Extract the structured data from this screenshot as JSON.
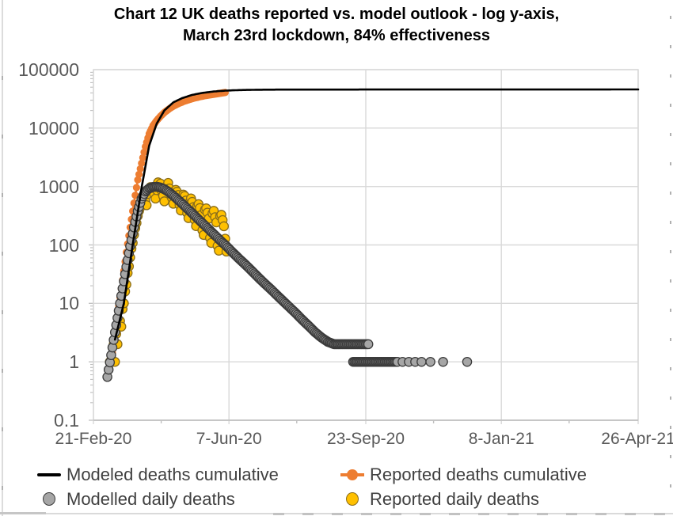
{
  "title": {
    "line1": "Chart 12 UK deaths reported vs. model outlook - log y-axis,",
    "line2": "March 23rd lockdown, 84% effectiveness"
  },
  "legend": {
    "items": [
      {
        "id": "modeled-cumulative",
        "label": "Modeled deaths cumulative",
        "swatch": "line",
        "color": "#000000"
      },
      {
        "id": "reported-cumulative",
        "label": "Reported deaths cumulative",
        "swatch": "line-marker",
        "color": "#ED7D31"
      },
      {
        "id": "modelled-daily",
        "label": "Modelled daily deaths",
        "swatch": "circle",
        "fill": "#A6A6A6",
        "stroke": "#3B3B3B"
      },
      {
        "id": "reported-daily",
        "label": "Reported daily deaths",
        "swatch": "circle",
        "fill": "#FFC000",
        "stroke": "#8A6D1B"
      }
    ]
  },
  "chart_data": {
    "type": "line+scatter",
    "title": "Chart 12 UK deaths reported vs. model outlook - log y-axis, March 23rd lockdown, 84% effectiveness",
    "x_axis": {
      "unit": "days since 21-Feb-20",
      "range_days": [
        0,
        430
      ],
      "tick_days": [
        0,
        107,
        215,
        322,
        430
      ],
      "tick_labels": [
        "21-Feb-20",
        "7-Jun-20",
        "23-Sep-20",
        "8-Jan-21",
        "26-Apr-21"
      ],
      "minor_tick_days": [
        53.5,
        160.5,
        268.5,
        375.5
      ]
    },
    "y_axis": {
      "scale": "log",
      "range": [
        0.1,
        100000
      ],
      "tick_values": [
        100000,
        10000,
        1000,
        100,
        10,
        1,
        0.1
      ],
      "tick_labels": [
        "100000",
        "10000",
        "1000",
        "100",
        "10",
        "1",
        "0.1"
      ],
      "grid": true,
      "gridline_color": "#D9D9D9"
    },
    "series": [
      {
        "name": "Reported deaths cumulative",
        "style": "line+marker",
        "color": "#ED7D31",
        "marker_radius": 4.6,
        "sampling": "daily-log-interpolated",
        "anchors": [
          [
            14,
            1
          ],
          [
            16,
            2
          ],
          [
            18,
            4
          ],
          [
            20,
            9
          ],
          [
            23,
            25
          ],
          [
            26,
            75
          ],
          [
            29,
            200
          ],
          [
            32,
            520
          ],
          [
            35,
            1300
          ],
          [
            38,
            2500
          ],
          [
            41,
            4800
          ],
          [
            44,
            8000
          ],
          [
            47,
            11000
          ],
          [
            50,
            13500
          ],
          [
            53,
            16000
          ],
          [
            56,
            18500
          ],
          [
            60,
            21500
          ],
          [
            64,
            24300
          ],
          [
            68,
            26800
          ],
          [
            72,
            29000
          ],
          [
            76,
            31000
          ],
          [
            80,
            32800
          ],
          [
            84,
            34400
          ],
          [
            88,
            35800
          ],
          [
            92,
            37000
          ],
          [
            96,
            38100
          ],
          [
            100,
            39400
          ],
          [
            104,
            40600
          ]
        ]
      },
      {
        "name": "Reported daily deaths",
        "style": "marker",
        "fill": "#FFC000",
        "stroke": "#8A6D1B",
        "marker_radius": 5.6,
        "points": [
          [
            13,
            1
          ],
          [
            15,
            1
          ],
          [
            16,
            2
          ],
          [
            17,
            1
          ],
          [
            18,
            3
          ],
          [
            19,
            2
          ],
          [
            20,
            4
          ],
          [
            21,
            5
          ],
          [
            22,
            4
          ],
          [
            23,
            8
          ],
          [
            24,
            10
          ],
          [
            25,
            16
          ],
          [
            26,
            21
          ],
          [
            27,
            33
          ],
          [
            28,
            43
          ],
          [
            29,
            61
          ],
          [
            30,
            87
          ],
          [
            31,
            108
          ],
          [
            32,
            149
          ],
          [
            33,
            194
          ],
          [
            34,
            237
          ],
          [
            35,
            313
          ],
          [
            36,
            381
          ],
          [
            37,
            438
          ],
          [
            38,
            557
          ],
          [
            39,
            621
          ],
          [
            40,
            704
          ],
          [
            41,
            563
          ],
          [
            42,
            479
          ],
          [
            43,
            744
          ],
          [
            44,
            861
          ],
          [
            45,
            978
          ],
          [
            46,
            941
          ],
          [
            47,
            893
          ],
          [
            48,
            737
          ],
          [
            49,
            621
          ],
          [
            50,
            869
          ],
          [
            51,
            1180
          ],
          [
            52,
            954
          ],
          [
            53,
            1120
          ],
          [
            54,
            843
          ],
          [
            55,
            693
          ],
          [
            56,
            558
          ],
          [
            57,
            904
          ],
          [
            58,
            946
          ],
          [
            59,
            1152
          ],
          [
            60,
            926
          ],
          [
            61,
            786
          ],
          [
            62,
            638
          ],
          [
            63,
            508
          ],
          [
            64,
            826
          ],
          [
            65,
            877
          ],
          [
            66,
            812
          ],
          [
            67,
            715
          ],
          [
            68,
            482
          ],
          [
            69,
            388
          ],
          [
            70,
            653
          ],
          [
            71,
            726
          ],
          [
            72,
            688
          ],
          [
            73,
            575
          ],
          [
            74,
            351
          ],
          [
            75,
            288
          ],
          [
            76,
            538
          ],
          [
            77,
            626
          ],
          [
            78,
            545
          ],
          [
            79,
            446
          ],
          [
            80,
            268
          ],
          [
            81,
            210
          ],
          [
            82,
            468
          ],
          [
            83,
            498
          ],
          [
            84,
            428
          ],
          [
            85,
            324
          ],
          [
            86,
            178
          ],
          [
            87,
            148
          ],
          [
            88,
            401
          ],
          [
            89,
            422
          ],
          [
            90,
            357
          ],
          [
            91,
            282
          ],
          [
            92,
            131
          ],
          [
            93,
            108
          ],
          [
            94,
            346
          ],
          [
            95,
            383
          ],
          [
            96,
            298
          ],
          [
            97,
            243
          ],
          [
            98,
            96
          ],
          [
            99,
            80
          ],
          [
            100,
            312
          ],
          [
            101,
            328
          ],
          [
            102,
            266
          ],
          [
            103,
            209
          ],
          [
            104,
            128
          ],
          [
            105,
            77
          ]
        ]
      },
      {
        "name": "Modelled daily deaths",
        "style": "marker",
        "fill": "#A6A6A6",
        "stroke": "#3B3B3B",
        "marker_radius": 5.6,
        "sampling": "daily-log-interpolated",
        "anchors": [
          [
            11,
            0.55
          ],
          [
            14,
            1.3
          ],
          [
            17,
            3.2
          ],
          [
            20,
            7.5
          ],
          [
            23,
            18
          ],
          [
            26,
            42
          ],
          [
            29,
            95
          ],
          [
            32,
            200
          ],
          [
            35,
            380
          ],
          [
            38,
            620
          ],
          [
            41,
            820
          ],
          [
            44,
            930
          ],
          [
            47,
            980
          ],
          [
            50,
            990
          ],
          [
            53,
            960
          ],
          [
            56,
            900
          ],
          [
            60,
            790
          ],
          [
            65,
            640
          ],
          [
            70,
            510
          ],
          [
            75,
            400
          ],
          [
            80,
            315
          ],
          [
            85,
            248
          ],
          [
            90,
            195
          ],
          [
            95,
            153
          ],
          [
            100,
            120
          ],
          [
            105,
            95
          ],
          [
            110,
            74
          ],
          [
            115,
            58
          ],
          [
            120,
            46
          ],
          [
            125,
            36
          ],
          [
            130,
            28
          ],
          [
            135,
            22
          ],
          [
            140,
            17.5
          ],
          [
            145,
            13.7
          ],
          [
            150,
            10.8
          ],
          [
            155,
            8.5
          ],
          [
            160,
            6.7
          ],
          [
            165,
            5.2
          ],
          [
            170,
            4.1
          ],
          [
            175,
            3.2
          ],
          [
            180,
            2.6
          ],
          [
            185,
            2.2
          ],
          [
            190,
            2
          ]
        ],
        "tail_runs": [
          {
            "from": 191,
            "to": 217,
            "value": 2
          },
          {
            "from": 205,
            "to": 240,
            "value": 1
          }
        ],
        "tail_sparse": [
          [
            244,
            1
          ],
          [
            249,
            1
          ],
          [
            254,
            1
          ],
          [
            259,
            1
          ],
          [
            266,
            1
          ],
          [
            276,
            1
          ],
          [
            295,
            1
          ]
        ]
      },
      {
        "name": "Modeled deaths cumulative",
        "style": "line",
        "color": "#000000",
        "line_width": 2.6,
        "sampling": "daily-log-interpolated",
        "anchors": [
          [
            17,
            2.4
          ],
          [
            24,
            10
          ],
          [
            31,
            100
          ],
          [
            38,
            950
          ],
          [
            44,
            5000
          ],
          [
            50,
            12000
          ],
          [
            56,
            20000
          ],
          [
            63,
            27500
          ],
          [
            70,
            32500
          ],
          [
            78,
            37000
          ],
          [
            86,
            40000
          ],
          [
            95,
            42300
          ],
          [
            104,
            43700
          ],
          [
            115,
            44700
          ],
          [
            130,
            45300
          ],
          [
            150,
            45600
          ],
          [
            430,
            45800
          ]
        ]
      }
    ]
  }
}
